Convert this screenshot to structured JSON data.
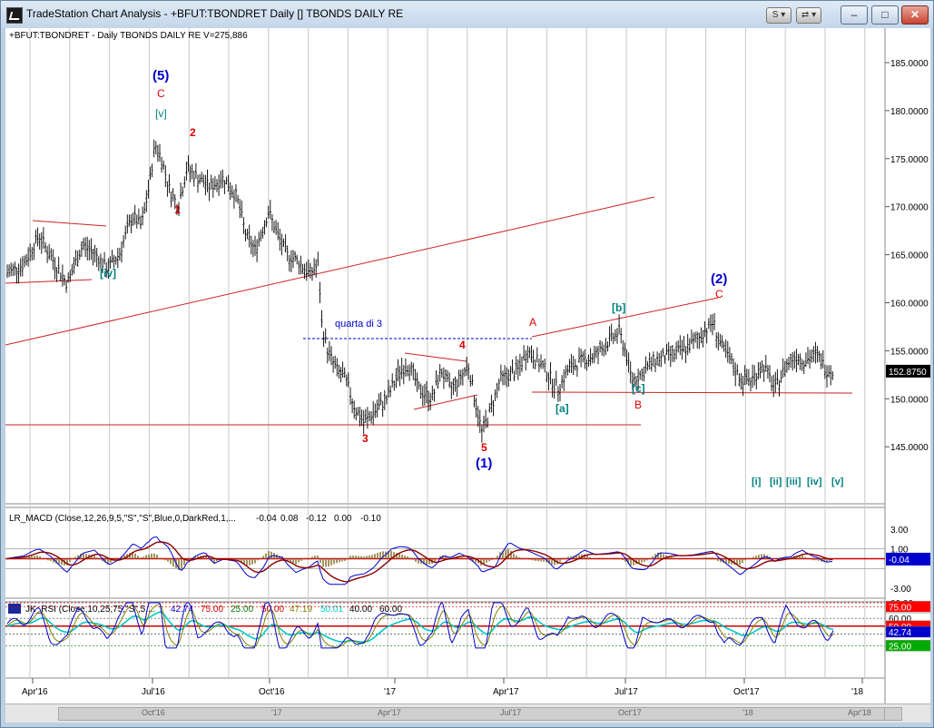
{
  "window": {
    "title": "TradeStation Chart Analysis - +BFUT:TBONDRET Daily [] TBONDS DAILY RE",
    "buttons": {
      "s_dropdown": "S ▾",
      "link_dropdown": "⇄ ▾",
      "minimize": "–",
      "maximize": "□",
      "close": "✕"
    }
  },
  "price_panel": {
    "header": "+BFUT:TBONDRET - Daily  TBONDS DAILY RE  V=275,886",
    "last_price": "152.8750",
    "y_ticks": [
      "185.0000",
      "180.0000",
      "175.0000",
      "170.0000",
      "165.0000",
      "160.0000",
      "155.0000",
      "150.0000",
      "145.0000"
    ]
  },
  "annotations": [
    {
      "text": "(5)",
      "color": "#0000cc"
    },
    {
      "text": "C",
      "color": "#dd0000"
    },
    {
      "text": "[v]",
      "color": "#008080"
    },
    {
      "text": "2",
      "color": "#dd0000"
    },
    {
      "text": "1",
      "color": "#dd0000"
    },
    {
      "text": "[iv]",
      "color": "#008080"
    },
    {
      "text": "quarta di 3",
      "color": "#0000cc"
    },
    {
      "text": "4",
      "color": "#dd0000"
    },
    {
      "text": "3",
      "color": "#dd0000"
    },
    {
      "text": "5",
      "color": "#dd0000"
    },
    {
      "text": "(1)",
      "color": "#0000cc"
    },
    {
      "text": "A",
      "color": "#dd0000"
    },
    {
      "text": "[a]",
      "color": "#008080"
    },
    {
      "text": "[b]",
      "color": "#008080"
    },
    {
      "text": "[c]",
      "color": "#008080"
    },
    {
      "text": "B",
      "color": "#dd0000"
    },
    {
      "text": "(2)",
      "color": "#0000cc"
    },
    {
      "text": "C",
      "color": "#dd0000"
    },
    {
      "text": "[i]",
      "color": "#008080"
    },
    {
      "text": "[ii]",
      "color": "#008080"
    },
    {
      "text": "[iii]",
      "color": "#008080"
    },
    {
      "text": "[iv]",
      "color": "#008080"
    },
    {
      "text": "[v]",
      "color": "#008080"
    }
  ],
  "macd_panel": {
    "header": "LR_MACD (Close,12,26,9,5,\"S\",\"S\",Blue,0,DarkRed,1,...",
    "values": [
      "-0.04",
      "0.08",
      "-0.12",
      "0.00",
      "-0.10"
    ],
    "y_ticks": [
      "3.00",
      "1.00",
      "-3.00"
    ],
    "last_value": "-0.04"
  },
  "rsi_panel": {
    "header": "JK_RSI (Close,10,25,75,\"S\",5,...",
    "values": [
      {
        "text": "42.74",
        "color": "#0000cc"
      },
      {
        "text": "75.00",
        "color": "#cc0000"
      },
      {
        "text": "25.00",
        "color": "#008000"
      },
      {
        "text": "50.00",
        "color": "#cc0000"
      },
      {
        "text": "47.19",
        "color": "#808000"
      },
      {
        "text": "50.01",
        "color": "#00cccc"
      },
      {
        "text": "40.00",
        "color": "#000000"
      },
      {
        "text": "60.00",
        "color": "#000000"
      }
    ],
    "labels": {
      "l80": "80.00",
      "l75": "75.00",
      "l60": "60.00",
      "l50": "50.00",
      "l4274": "42.74",
      "l25": "25.00"
    }
  },
  "time_axis": {
    "labels": [
      "Apr'16",
      "Jul'16",
      "Oct'16",
      "'17",
      "Apr'17",
      "Jul'17",
      "Oct'17",
      "'18"
    ],
    "scroll_labels": [
      "Oct'16",
      "'17",
      "Apr'17",
      "Jul'17",
      "Oct'17",
      "'18",
      "Apr'18"
    ]
  }
}
